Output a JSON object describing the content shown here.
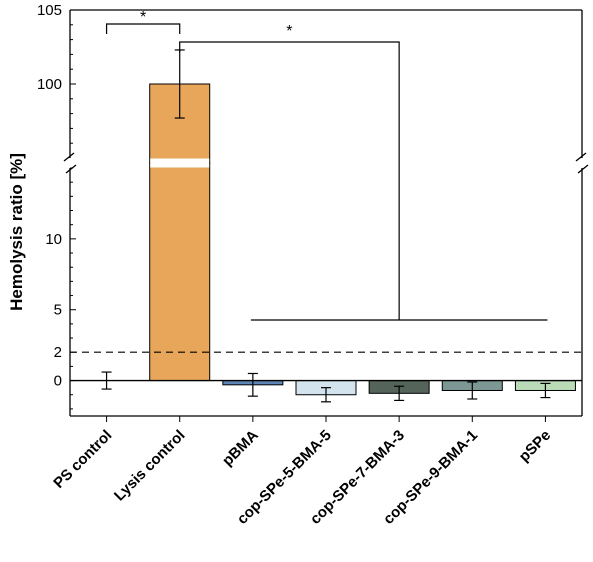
{
  "chart_data": {
    "type": "bar",
    "ylabel": "Hemolysis ratio [%]",
    "categories": [
      "PS control",
      "Lysis control",
      "pBMA",
      "cop-SPe-5-BMA-5",
      "cop-SPe-7-BMA-3",
      "cop-SPe-9-BMA-1",
      "pSPe"
    ],
    "values": [
      0,
      100,
      -0.3,
      -1.0,
      -0.9,
      -0.7,
      -0.7
    ],
    "errors": [
      0.6,
      2.3,
      0.8,
      0.5,
      0.5,
      0.6,
      0.5
    ],
    "colors": [
      "#ffffff",
      "#e8a65a",
      "#5e86b5",
      "#d3e4ef",
      "#55645b",
      "#7d9795",
      "#b9dbb8"
    ],
    "y_ticks_lower": [
      "0",
      "2",
      "5",
      "10"
    ],
    "y_ticks_upper": [
      "100",
      "105"
    ],
    "y_lower_range": [
      -2.5,
      15
    ],
    "y_upper_range": [
      95,
      105
    ],
    "y_break": true,
    "threshold_line": 2,
    "threshold_label": "2",
    "significance": [
      {
        "from": "PS control",
        "to": "Lysis control",
        "label": "*"
      },
      {
        "from": "Lysis control",
        "to": [
          "pBMA",
          "cop-SPe-5-BMA-5",
          "cop-SPe-7-BMA-3",
          "cop-SPe-9-BMA-1",
          "pSPe"
        ],
        "label": "*"
      }
    ],
    "legend": "none",
    "grid": false
  }
}
